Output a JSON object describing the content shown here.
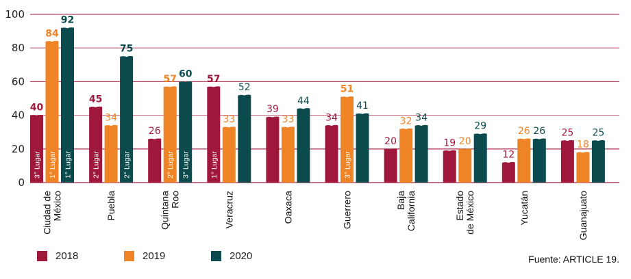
{
  "chart_data": {
    "type": "bar",
    "title": "",
    "xlabel": "",
    "ylabel": "",
    "ylim": [
      0,
      100
    ],
    "yticks": [
      0,
      20,
      40,
      60,
      80,
      100
    ],
    "grid": true,
    "categories": [
      [
        "Ciudad de",
        "México"
      ],
      [
        "Puebla"
      ],
      [
        "Quintana",
        "Roo"
      ],
      [
        "Veracruz"
      ],
      [
        "Oaxaca"
      ],
      [
        "Guerrero"
      ],
      [
        "Baja",
        "California"
      ],
      [
        "Estado",
        "de México"
      ],
      [
        "Yucatán"
      ],
      [
        "Guanajuato"
      ]
    ],
    "series": [
      {
        "name": "2018",
        "color": "#a0173c",
        "values": [
          40,
          45,
          26,
          57,
          39,
          34,
          20,
          19,
          12,
          25
        ],
        "rank_labels": [
          "3° Lugar",
          "2° Lugar",
          "",
          "1° Lugar",
          "",
          "",
          "",
          "",
          "",
          ""
        ]
      },
      {
        "name": "2019",
        "color": "#ef8427",
        "values": [
          84,
          34,
          57,
          33,
          33,
          51,
          32,
          20,
          26,
          18
        ],
        "rank_labels": [
          "1° Lugar",
          "",
          "2° Lugar",
          "",
          "",
          "3° Lugar",
          "",
          "",
          "",
          ""
        ]
      },
      {
        "name": "2020",
        "color": "#0b4a4d",
        "values": [
          92,
          75,
          60,
          52,
          44,
          41,
          34,
          29,
          26,
          25
        ],
        "rank_labels": [
          "1° Lugar",
          "2° Lugar",
          "3° Lugar",
          "",
          "",
          "",
          "",
          "",
          "",
          ""
        ]
      }
    ],
    "bold_labels": {
      "2018": [
        true,
        true,
        false,
        true,
        false,
        false,
        false,
        false,
        false,
        false
      ],
      "2019": [
        true,
        false,
        true,
        false,
        false,
        true,
        false,
        false,
        false,
        false
      ],
      "2020": [
        true,
        true,
        true,
        false,
        false,
        false,
        false,
        false,
        false,
        false
      ]
    },
    "gridline_color": "#a0173c",
    "legend": {
      "position": "bottom-left",
      "entries": [
        "2018",
        "2019",
        "2020"
      ]
    }
  },
  "source": "Fuente: ARTICLE 19."
}
